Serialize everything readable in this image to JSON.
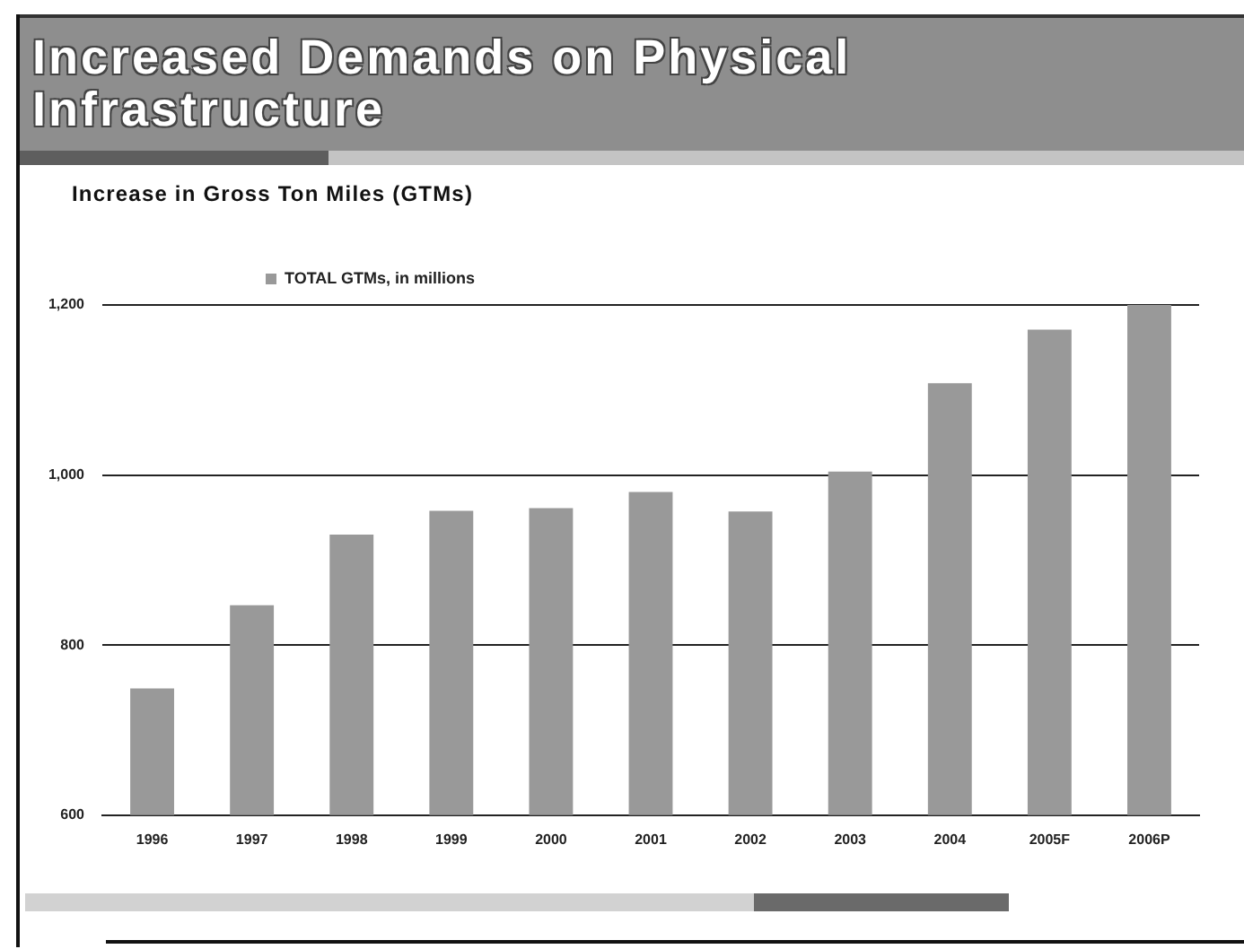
{
  "chart_data": {
    "type": "bar",
    "title": "Increased Demands on Physical Infrastructure",
    "subtitle": "Increase in Gross Ton Miles (GTMs)",
    "categories": [
      "1996",
      "1997",
      "1998",
      "1999",
      "2000",
      "2001",
      "2002",
      "2003",
      "2004",
      "2005F",
      "2006P"
    ],
    "series": [
      {
        "name": "TOTAL GTMs, in millions",
        "color": "#999999",
        "values": [
          749,
          847,
          930,
          958,
          961,
          980,
          957,
          1004,
          1108,
          1171,
          1200
        ]
      }
    ],
    "ylim": [
      600,
      1200
    ],
    "yticks": [
      600,
      800,
      {
        "value": 1000,
        "label": "1,000"
      },
      {
        "value": 1200,
        "label": "1,200"
      }
    ],
    "grid": "y",
    "legend": "top left"
  }
}
